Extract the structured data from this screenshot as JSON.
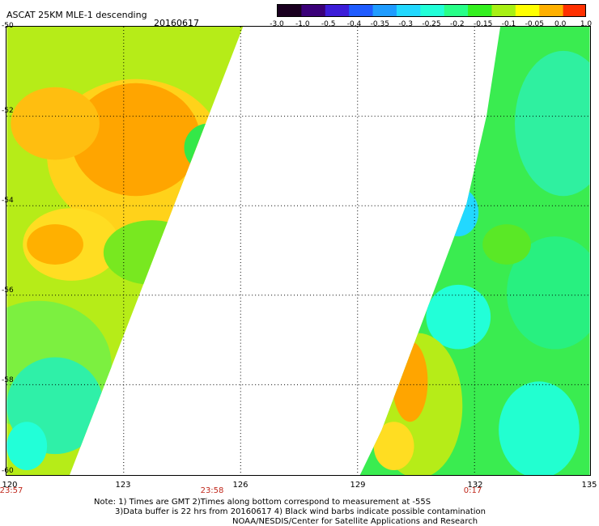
{
  "header": {
    "title": "ASCAT 25KM MLE-1 descending",
    "date": "20160617"
  },
  "colorbar": {
    "labels": [
      "-3.0",
      "-1.0",
      "-0.5",
      "-0.4",
      "-0.35",
      "-0.3",
      "-0.25",
      "-0.2",
      "-0.15",
      "-0.1",
      "-0.05",
      "0.0",
      "1.0"
    ],
    "colors": [
      "#1a0020",
      "#3a0078",
      "#3c1dd8",
      "#1f5cff",
      "#1f9cff",
      "#22d8ff",
      "#22ffd8",
      "#28ff88",
      "#34f020",
      "#a8f014",
      "#ffff00",
      "#ffb000",
      "#ff3000"
    ]
  },
  "axes": {
    "y_ticks": [
      "-50",
      "-52",
      "-54",
      "-56",
      "-58",
      "-60"
    ],
    "x_ticks": [
      "120",
      "123",
      "126",
      "129",
      "132",
      "135"
    ],
    "time_labels": [
      "23:57",
      "23:58",
      "0:17"
    ]
  },
  "notes": {
    "line1": "Note: 1) Times are GMT 2)Times along bottom correspond to measurement at -55S",
    "line2": "3)Data buffer is 22 hrs from 20160617 4) Black wind barbs indicate possible contamination",
    "line3": "NOAA/NESDIS/Center for Satellite Applications and Research"
  }
}
